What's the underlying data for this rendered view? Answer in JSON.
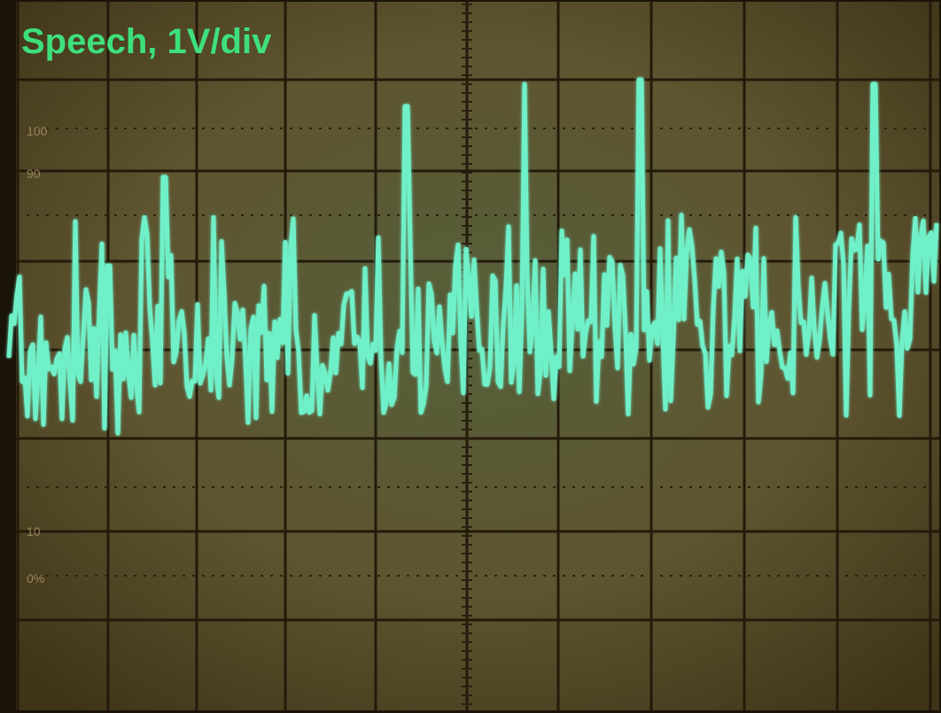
{
  "title": "Speech, 1V/div",
  "graticule_labels": [
    "100",
    "90",
    "10",
    "0%"
  ]
}
